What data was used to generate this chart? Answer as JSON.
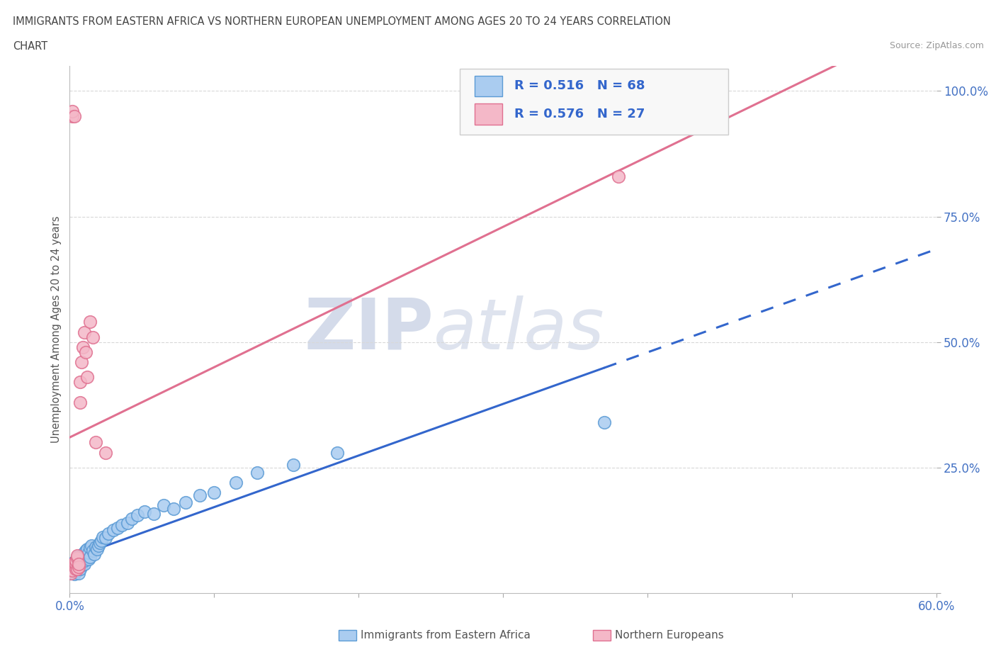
{
  "title_line1": "IMMIGRANTS FROM EASTERN AFRICA VS NORTHERN EUROPEAN UNEMPLOYMENT AMONG AGES 20 TO 24 YEARS CORRELATION",
  "title_line2": "CHART",
  "source": "Source: ZipAtlas.com",
  "ylabel": "Unemployment Among Ages 20 to 24 years",
  "xlim": [
    0.0,
    0.6
  ],
  "ylim": [
    0.0,
    1.05
  ],
  "blue_R": 0.516,
  "blue_N": 68,
  "pink_R": 0.576,
  "pink_N": 27,
  "blue_color": "#aaccf0",
  "blue_edge": "#5b9bd5",
  "pink_color": "#f4b8c8",
  "pink_edge": "#e07090",
  "trend_blue_solid": "#3366cc",
  "trend_blue_dash": "#3366cc",
  "trend_pink": "#e07090",
  "blue_scatter_x": [
    0.001,
    0.002,
    0.002,
    0.002,
    0.003,
    0.003,
    0.003,
    0.003,
    0.004,
    0.004,
    0.004,
    0.005,
    0.005,
    0.005,
    0.005,
    0.006,
    0.006,
    0.006,
    0.007,
    0.007,
    0.007,
    0.007,
    0.008,
    0.008,
    0.008,
    0.009,
    0.009,
    0.009,
    0.01,
    0.01,
    0.01,
    0.011,
    0.011,
    0.012,
    0.012,
    0.013,
    0.013,
    0.014,
    0.014,
    0.015,
    0.016,
    0.017,
    0.018,
    0.019,
    0.02,
    0.021,
    0.022,
    0.023,
    0.025,
    0.027,
    0.03,
    0.033,
    0.036,
    0.04,
    0.043,
    0.047,
    0.052,
    0.058,
    0.065,
    0.072,
    0.08,
    0.09,
    0.1,
    0.115,
    0.13,
    0.155,
    0.185,
    0.37
  ],
  "blue_scatter_y": [
    0.04,
    0.045,
    0.05,
    0.042,
    0.048,
    0.055,
    0.06,
    0.038,
    0.052,
    0.058,
    0.065,
    0.06,
    0.068,
    0.045,
    0.072,
    0.055,
    0.062,
    0.04,
    0.065,
    0.07,
    0.048,
    0.058,
    0.075,
    0.055,
    0.068,
    0.07,
    0.062,
    0.078,
    0.058,
    0.065,
    0.08,
    0.072,
    0.085,
    0.075,
    0.088,
    0.068,
    0.08,
    0.09,
    0.072,
    0.095,
    0.085,
    0.078,
    0.092,
    0.088,
    0.095,
    0.1,
    0.105,
    0.112,
    0.11,
    0.118,
    0.125,
    0.13,
    0.135,
    0.14,
    0.148,
    0.155,
    0.162,
    0.158,
    0.175,
    0.168,
    0.18,
    0.195,
    0.2,
    0.22,
    0.24,
    0.255,
    0.28,
    0.34
  ],
  "pink_scatter_x": [
    0.001,
    0.002,
    0.002,
    0.002,
    0.003,
    0.003,
    0.003,
    0.004,
    0.004,
    0.004,
    0.005,
    0.005,
    0.005,
    0.006,
    0.006,
    0.007,
    0.007,
    0.008,
    0.009,
    0.01,
    0.011,
    0.012,
    0.014,
    0.016,
    0.018,
    0.025,
    0.38
  ],
  "pink_scatter_y": [
    0.04,
    0.045,
    0.95,
    0.96,
    0.055,
    0.06,
    0.95,
    0.048,
    0.058,
    0.065,
    0.07,
    0.075,
    0.048,
    0.052,
    0.058,
    0.38,
    0.42,
    0.46,
    0.49,
    0.52,
    0.48,
    0.43,
    0.54,
    0.51,
    0.3,
    0.28,
    0.83
  ],
  "watermark_zip": "ZIP",
  "watermark_atlas": "atlas",
  "background_color": "#ffffff",
  "grid_color": "#d8d8d8",
  "legend_facecolor": "#f8f8f8",
  "legend_edgecolor": "#cccccc"
}
